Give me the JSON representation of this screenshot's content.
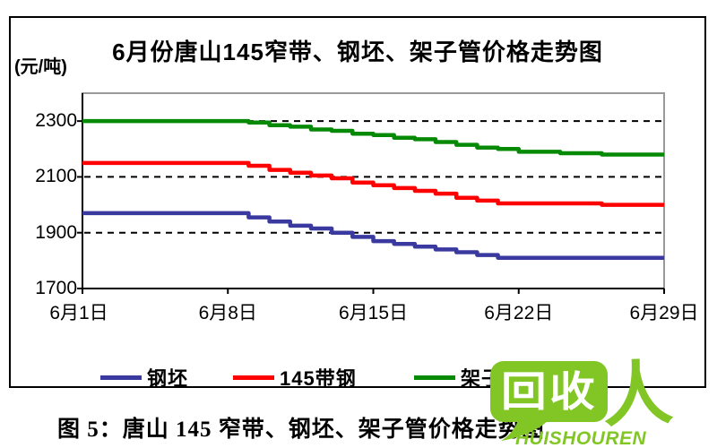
{
  "chart": {
    "title": "6月份唐山145窄带、钢坯、架子管价格走势图",
    "unit_label": "(元/吨)"
  },
  "chart_data": {
    "type": "line",
    "title": "6月份唐山145窄带、钢坯、架子管价格走势图",
    "xlabel": "",
    "ylabel": "元/吨",
    "ylim": [
      1700,
      2400
    ],
    "y_ticks": [
      1700,
      1900,
      2100,
      2300
    ],
    "gridlines_horizontal_dashed_at": [
      1900,
      2100,
      2300
    ],
    "x_range_days": [
      1,
      29
    ],
    "x_tick_days": [
      1,
      8,
      15,
      22,
      29
    ],
    "x_tick_labels": [
      "6月1日",
      "6月8日",
      "6月15日",
      "6月22日",
      "6月29日"
    ],
    "legend_position": "bottom",
    "line_style": "daily steps, flat first week, declining then flattening",
    "series": [
      {
        "name": "钢坯",
        "color": "#3939A0",
        "points": [
          {
            "day": 1,
            "value": 1970
          },
          {
            "day": 8,
            "value": 1970
          },
          {
            "day": 15,
            "value": 1870
          },
          {
            "day": 21,
            "value": 1810
          },
          {
            "day": 29,
            "value": 1810
          }
        ]
      },
      {
        "name": "145带钢",
        "color": "#FF0000",
        "points": [
          {
            "day": 1,
            "value": 2150
          },
          {
            "day": 8,
            "value": 2150
          },
          {
            "day": 15,
            "value": 2070
          },
          {
            "day": 21,
            "value": 2005
          },
          {
            "day": 29,
            "value": 2000
          }
        ]
      },
      {
        "name": "架子管",
        "color": "#068A06",
        "points": [
          {
            "day": 1,
            "value": 2300
          },
          {
            "day": 8,
            "value": 2300
          },
          {
            "day": 15,
            "value": 2250
          },
          {
            "day": 22,
            "value": 2190
          },
          {
            "day": 26,
            "value": 2180
          },
          {
            "day": 29,
            "value": 2180
          }
        ]
      }
    ]
  },
  "legend": {
    "items": [
      {
        "label": "钢坯",
        "color": "#3939A0"
      },
      {
        "label": "145带钢",
        "color": "#FF0000"
      },
      {
        "label": "架子管",
        "color": "#068A06"
      }
    ]
  },
  "caption": "图 5：唐山 145 窄带、钢坯、架子管价格走势图",
  "watermark": {
    "bubble_text": "回收",
    "person_glyph": "人",
    "subtext": "HUISHOUREN",
    "color": "#82C626"
  }
}
